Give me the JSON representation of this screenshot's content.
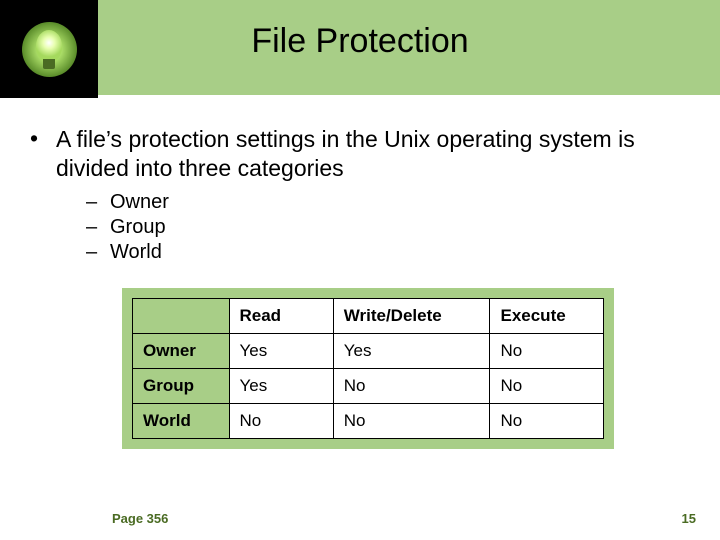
{
  "title": "File Protection",
  "bullet": "A file’s protection settings in the Unix operating system is divided into three categories",
  "subitems": [
    "Owner",
    "Group",
    "World"
  ],
  "table": {
    "columns": [
      "",
      "Read",
      "Write/Delete",
      "Execute"
    ],
    "rows": [
      [
        "Owner",
        "Yes",
        "Yes",
        "No"
      ],
      [
        "Group",
        "Yes",
        "No",
        "No"
      ],
      [
        "World",
        "No",
        "No",
        "No"
      ]
    ],
    "header_bg": "#a8ce87",
    "cell_bg": "#ffffff",
    "border_color": "#000000",
    "panel_bg": "#a8ce87"
  },
  "footer": {
    "page_ref": "Page 356",
    "slide_number": "15"
  },
  "colors": {
    "banner_bg": "#a8ce87",
    "bulb_box_bg": "#000000",
    "text": "#000000",
    "footer_text": "#4a6b23"
  },
  "typography": {
    "title_fontsize": 34,
    "body_fontsize": 23,
    "sub_fontsize": 20,
    "table_fontsize": 17,
    "footer_fontsize": 13
  }
}
